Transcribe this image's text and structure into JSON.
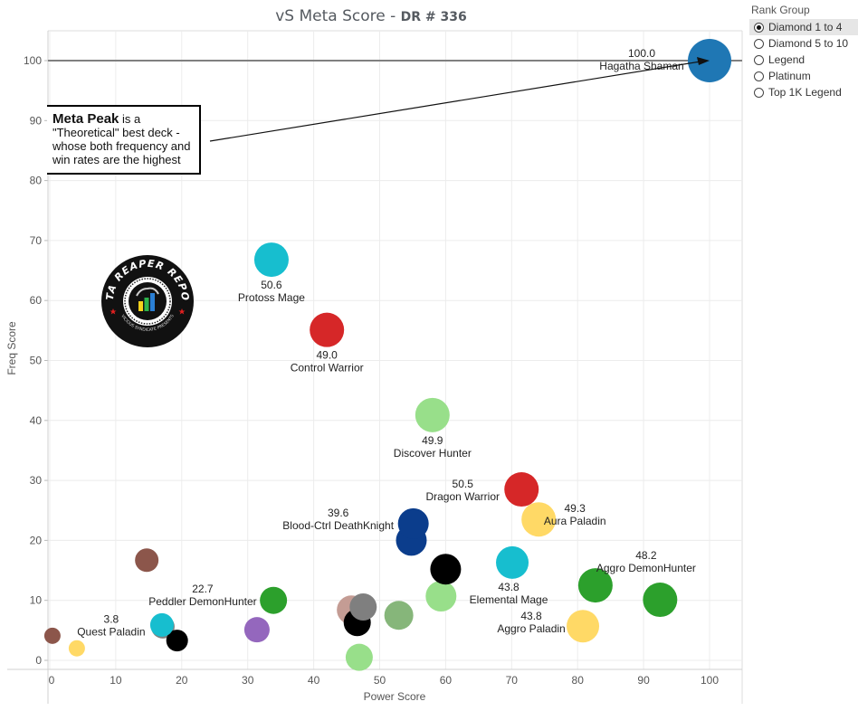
{
  "chart_data": {
    "type": "scatter",
    "title": "vS Meta Score",
    "subtitle": "DR # 336",
    "xlabel": "Power Score",
    "ylabel": "Freq Score",
    "xlim": [
      -1,
      105
    ],
    "ylim": [
      -1,
      105
    ],
    "xticks": [
      0,
      10,
      20,
      30,
      40,
      50,
      60,
      70,
      80,
      90,
      100
    ],
    "yticks": [
      0,
      10,
      20,
      30,
      40,
      50,
      60,
      70,
      80,
      90,
      100
    ],
    "grid": true,
    "reference_line": {
      "axis": "y",
      "value": 100
    },
    "annotation": {
      "bold": "Meta Peak",
      "text": " is a \"Theoretical\" best deck - whose both frequency and win rates are the highest",
      "points_to": [
        100,
        100
      ]
    },
    "points": [
      {
        "name": "Hagatha Shaman",
        "score": "100.0",
        "x": 100,
        "y": 100,
        "size": 24,
        "color": "#1f77b4",
        "label": true,
        "label_pos": "left-on"
      },
      {
        "name": "Protoss Mage",
        "score": "50.6",
        "x": 33.6,
        "y": 66.8,
        "size": 19,
        "color": "#17becf",
        "label": true,
        "label_pos": "below"
      },
      {
        "name": "Control Warrior",
        "score": "49.0",
        "x": 42.0,
        "y": 55.1,
        "size": 19,
        "color": "#d62728",
        "label": true,
        "label_pos": "below"
      },
      {
        "name": "Discover Hunter",
        "score": "49.9",
        "x": 58.0,
        "y": 40.9,
        "size": 19,
        "color": "#98df8a",
        "label": true,
        "label_pos": "below"
      },
      {
        "name": "Dragon Warrior",
        "score": "50.5",
        "x": 71.5,
        "y": 28.5,
        "size": 19,
        "color": "#d62728",
        "label": true,
        "label_pos": "left"
      },
      {
        "name": "Aura Paladin",
        "score": "49.3",
        "x": 74.1,
        "y": 23.5,
        "size": 19,
        "color": "#ffd966",
        "label": true,
        "label_pos": "right"
      },
      {
        "name": "Blood-Ctrl DeathKnight",
        "score": "39.6",
        "x": 55.1,
        "y": 22.8,
        "size": 17,
        "color": "#0b3d8c",
        "label": true,
        "label_pos": "left"
      },
      {
        "name": "",
        "score": "",
        "x": 54.8,
        "y": 20.0,
        "size": 17,
        "color": "#0b3d8c",
        "label": false
      },
      {
        "name": "Elemental Mage",
        "score": "43.8",
        "x": 70.1,
        "y": 16.3,
        "size": 18,
        "color": "#17becf",
        "label": true,
        "label_pos": "below"
      },
      {
        "name": "",
        "score": "",
        "x": 60.0,
        "y": 15.2,
        "size": 17,
        "color": "#000000",
        "label": false
      },
      {
        "name": "Aggro DemonHunter",
        "score": "48.2",
        "x": 82.7,
        "y": 12.5,
        "size": 19,
        "color": "#2ca02c",
        "label": true,
        "label_pos": "above-right"
      },
      {
        "name": "",
        "score": "",
        "x": 92.5,
        "y": 10.1,
        "size": 19,
        "color": "#2ca02c",
        "label": false
      },
      {
        "name": "",
        "score": "",
        "x": 59.3,
        "y": 10.7,
        "size": 17,
        "color": "#98df8a",
        "label": false
      },
      {
        "name": "Aggro Paladin",
        "score": "43.8",
        "x": 80.8,
        "y": 5.7,
        "size": 18,
        "color": "#ffd966",
        "label": true,
        "label_pos": "left"
      },
      {
        "name": "",
        "score": "",
        "x": 52.9,
        "y": 7.5,
        "size": 16,
        "color": "#86b67a",
        "label": false
      },
      {
        "name": "",
        "score": "",
        "x": 47.5,
        "y": 8.9,
        "size": 15,
        "color": "#7f7f7f",
        "label": false
      },
      {
        "name": "",
        "score": "",
        "x": 46.6,
        "y": 6.3,
        "size": 15,
        "color": "#000000",
        "label": false
      },
      {
        "name": "",
        "score": "",
        "x": 45.7,
        "y": 8.4,
        "size": 16,
        "color": "#c49c94",
        "label": false
      },
      {
        "name": "",
        "score": "",
        "x": 46.9,
        "y": 0.5,
        "size": 15,
        "color": "#98df8a",
        "label": false
      },
      {
        "name": "",
        "score": "",
        "x": 33.9,
        "y": 10.0,
        "size": 15,
        "color": "#2ca02c",
        "label": false
      },
      {
        "name": "",
        "score": "",
        "x": 31.4,
        "y": 5.1,
        "size": 14,
        "color": "#9467bd",
        "label": false
      },
      {
        "name": "",
        "score": "",
        "x": 14.7,
        "y": 16.7,
        "size": 13,
        "color": "#8c564b",
        "label": false
      },
      {
        "name": "Peddler DemonHunter",
        "score": "22.7",
        "x": 17.0,
        "y": 5.9,
        "size": 13,
        "color": "#17becf",
        "label": true,
        "label_pos": "above-right"
      },
      {
        "name": "",
        "score": "",
        "x": 19.3,
        "y": 3.3,
        "size": 12,
        "color": "#000000",
        "label": false
      },
      {
        "name": "",
        "score": "",
        "x": 0.4,
        "y": 4.1,
        "size": 9,
        "color": "#8c564b",
        "label": false
      },
      {
        "name": "Quest Paladin",
        "score": "3.8",
        "x": 4.1,
        "y": 2.0,
        "size": 9,
        "color": "#ffd966",
        "label": true,
        "label_pos": "above-right"
      }
    ]
  },
  "logo": {
    "top_text": "DATA REAPER REPORT",
    "bottom_text": "VICIOUS SYNDICATE PRESENTS"
  },
  "legend": {
    "title": "Rank Group",
    "options": [
      {
        "label": "Diamond 1 to 4",
        "selected": true
      },
      {
        "label": "Diamond 5 to 10",
        "selected": false
      },
      {
        "label": "Legend",
        "selected": false
      },
      {
        "label": "Platinum",
        "selected": false
      },
      {
        "label": "Top 1K Legend",
        "selected": false
      }
    ]
  }
}
